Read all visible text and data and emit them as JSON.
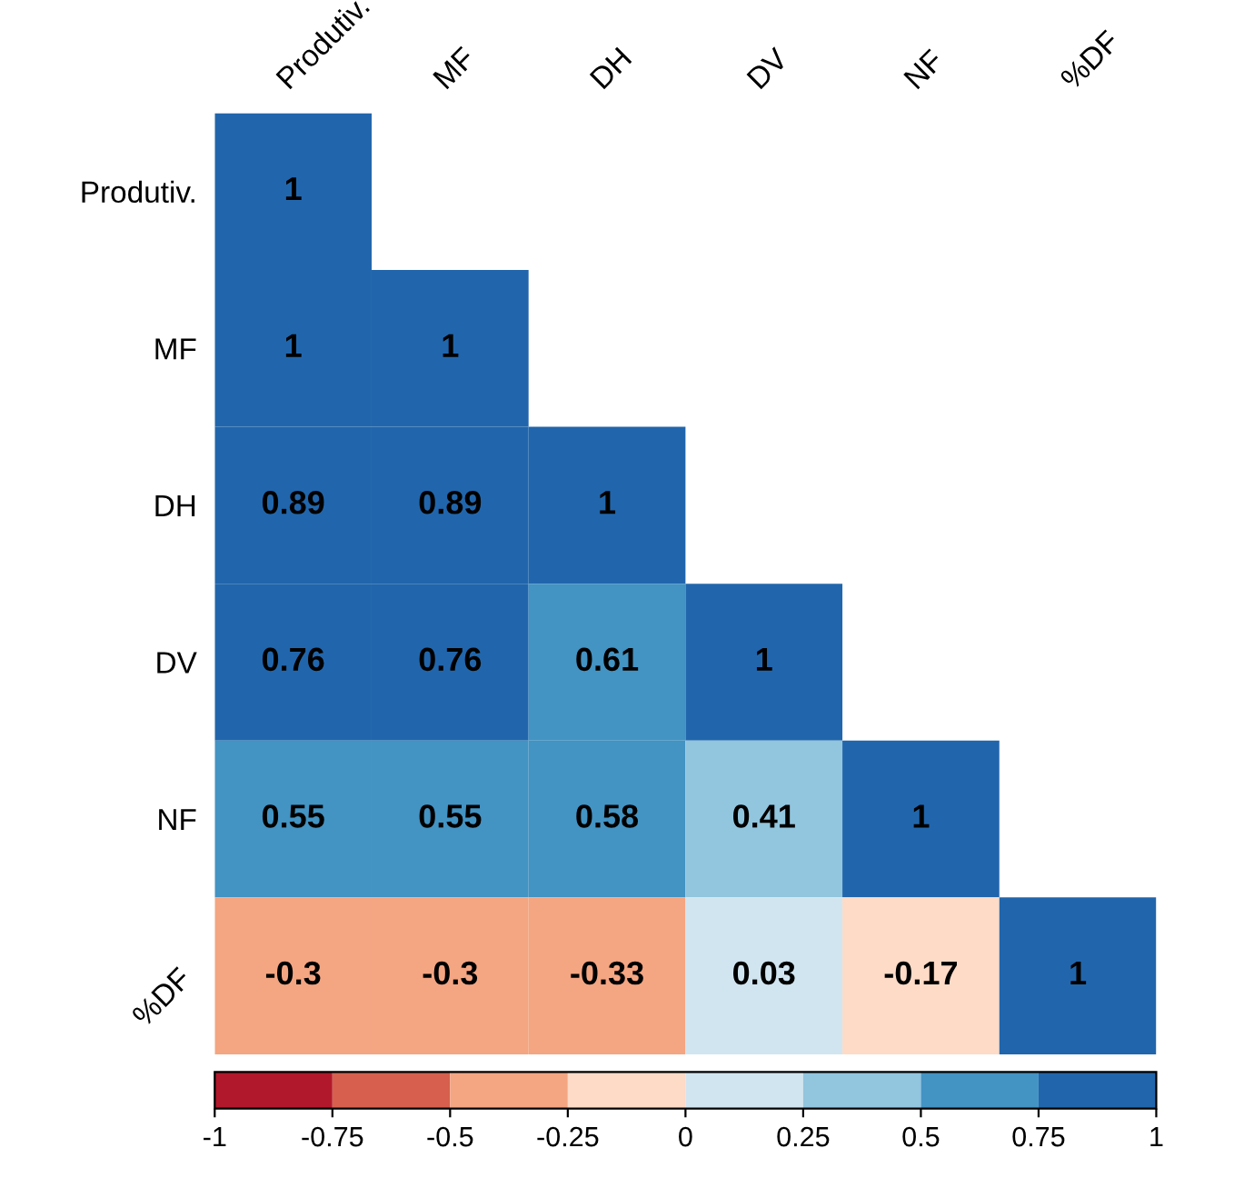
{
  "chart_data": {
    "type": "heatmap",
    "categories": [
      "Produtiv.",
      "MF",
      "DH",
      "DV",
      "NF",
      "%DF"
    ],
    "y_categories": [
      "Produtiv.",
      "MF",
      "DH",
      "DV",
      "NF",
      "%DF"
    ],
    "cells": [
      [
        1,
        null,
        null,
        null,
        null,
        null
      ],
      [
        1,
        1,
        null,
        null,
        null,
        null
      ],
      [
        0.89,
        0.89,
        1,
        null,
        null,
        null
      ],
      [
        0.76,
        0.76,
        0.61,
        1,
        null,
        null
      ],
      [
        0.55,
        0.55,
        0.58,
        0.41,
        1,
        null
      ],
      [
        -0.3,
        -0.3,
        -0.33,
        0.03,
        -0.17,
        1
      ]
    ],
    "data_labels": true,
    "colors": [
      "#b2182b",
      "#d6604d",
      "#f4a582",
      "#fddbc7",
      "#d1e5f0",
      "#92c5de",
      "#4393c3",
      "#2166ac"
    ],
    "clim": [
      -1,
      1
    ],
    "cticks": [
      -1,
      {
        "value": -0.75,
        "label": "-0.75"
      },
      {
        "value": -0.5,
        "label": "-0.5"
      },
      {
        "value": -0.25,
        "label": "-0.25"
      },
      0,
      0.25,
      0.5,
      0.75,
      1
    ]
  }
}
